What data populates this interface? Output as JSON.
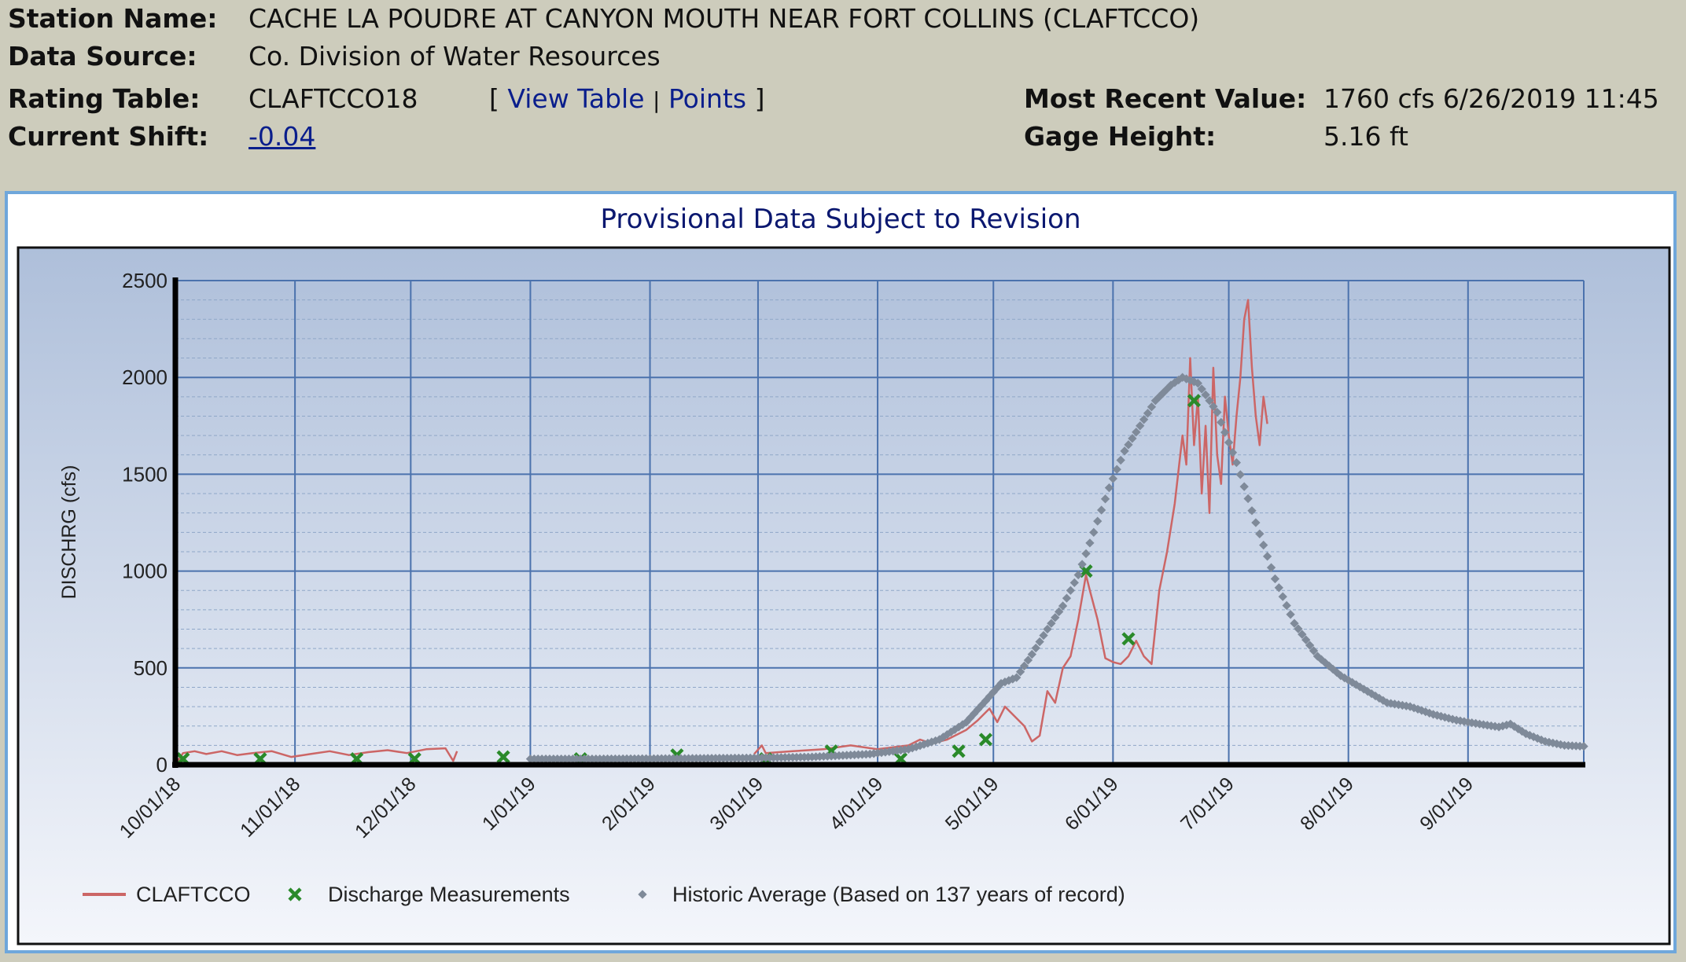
{
  "station": {
    "name_label": "Station Name:",
    "name": "CACHE LA POUDRE AT CANYON MOUTH NEAR FORT COLLINS (CLAFTCCO)",
    "source_label": "Data Source:",
    "source": "Co. Division of Water Resources",
    "rating_label": "Rating Table:",
    "rating": "CLAFTCCO18",
    "bracket_open": "[",
    "view_table": "View Table",
    "separator": "|",
    "points": "Points",
    "bracket_close": "]",
    "shift_label": "Current Shift:",
    "shift": "-0.04",
    "recent_label": "Most Recent Value:",
    "recent": "1760 cfs 6/26/2019 11:45",
    "gage_label": "Gage Height:",
    "gage": "5.16 ft"
  },
  "chart_data": {
    "type": "line",
    "title": "Provisional Data Subject to Revision",
    "ylabel": "DISCHRG (cfs)",
    "xlabel": "",
    "ylim": [
      0,
      2500
    ],
    "yticks": [
      "0",
      "500",
      "1000",
      "1500",
      "2000",
      "2500"
    ],
    "x_start": "10/01/18",
    "x_end": "9/30/19",
    "xticks": [
      {
        "label": "10/01/18",
        "day": 0
      },
      {
        "label": "11/01/18",
        "day": 31
      },
      {
        "label": "12/01/18",
        "day": 61
      },
      {
        "label": "1/01/19",
        "day": 92
      },
      {
        "label": "2/01/19",
        "day": 123
      },
      {
        "label": "3/01/19",
        "day": 151
      },
      {
        "label": "4/01/19",
        "day": 182
      },
      {
        "label": "5/01/19",
        "day": 212
      },
      {
        "label": "6/01/19",
        "day": 243
      },
      {
        "label": "7/01/19",
        "day": 273
      },
      {
        "label": "8/01/19",
        "day": 304
      },
      {
        "label": "9/01/19",
        "day": 335
      }
    ],
    "grid": true,
    "legend_position": "bottom",
    "legend": [
      {
        "name": "CLAFTCCO",
        "marker": "line",
        "color": "#cc6666"
      },
      {
        "name": "Discharge Measurements",
        "marker": "x",
        "color": "#2a8a2a"
      },
      {
        "name": "Historic Average (Based on 137 years of record)",
        "marker": "dot",
        "color": "#7f8a99"
      }
    ],
    "series": [
      {
        "name": "CLAFTCCO",
        "color": "#cc6666",
        "points": [
          [
            0,
            0
          ],
          [
            2,
            60
          ],
          [
            5,
            70
          ],
          [
            8,
            55
          ],
          [
            12,
            70
          ],
          [
            16,
            50
          ],
          [
            20,
            60
          ],
          [
            25,
            70
          ],
          [
            30,
            40
          ],
          [
            35,
            55
          ],
          [
            40,
            70
          ],
          [
            45,
            50
          ],
          [
            50,
            65
          ],
          [
            55,
            75
          ],
          [
            60,
            60
          ],
          [
            65,
            80
          ],
          [
            70,
            85
          ],
          [
            72,
            20
          ],
          [
            73,
            70
          ],
          [
            95,
            40
          ],
          [
            110,
            45
          ],
          [
            130,
            50
          ],
          [
            150,
            55
          ],
          [
            152,
            100
          ],
          [
            153,
            60
          ],
          [
            160,
            70
          ],
          [
            168,
            80
          ],
          [
            175,
            100
          ],
          [
            182,
            80
          ],
          [
            190,
            100
          ],
          [
            193,
            130
          ],
          [
            196,
            110
          ],
          [
            200,
            130
          ],
          [
            205,
            180
          ],
          [
            208,
            230
          ],
          [
            211,
            290
          ],
          [
            213,
            220
          ],
          [
            215,
            300
          ],
          [
            218,
            240
          ],
          [
            220,
            200
          ],
          [
            222,
            120
          ],
          [
            224,
            150
          ],
          [
            226,
            380
          ],
          [
            228,
            320
          ],
          [
            230,
            500
          ],
          [
            232,
            560
          ],
          [
            234,
            750
          ],
          [
            236,
            980
          ],
          [
            237,
            900
          ],
          [
            239,
            750
          ],
          [
            241,
            550
          ],
          [
            243,
            530
          ],
          [
            245,
            520
          ],
          [
            247,
            560
          ],
          [
            249,
            640
          ],
          [
            251,
            560
          ],
          [
            253,
            520
          ],
          [
            255,
            900
          ],
          [
            257,
            1100
          ],
          [
            259,
            1350
          ],
          [
            261,
            1700
          ],
          [
            262,
            1550
          ],
          [
            263,
            2100
          ],
          [
            264,
            1650
          ],
          [
            265,
            1900
          ],
          [
            266,
            1400
          ],
          [
            267,
            1750
          ],
          [
            268,
            1300
          ],
          [
            269,
            2050
          ],
          [
            270,
            1600
          ],
          [
            271,
            1450
          ],
          [
            272,
            1900
          ],
          [
            273,
            1700
          ],
          [
            274,
            1550
          ],
          [
            275,
            1800
          ],
          [
            276,
            2000
          ],
          [
            277,
            2300
          ],
          [
            278,
            2400
          ],
          [
            279,
            2050
          ],
          [
            280,
            1800
          ],
          [
            281,
            1650
          ],
          [
            282,
            1900
          ],
          [
            283,
            1760
          ]
        ]
      },
      {
        "name": "Discharge Measurements",
        "color": "#2a8a2a",
        "points": [
          [
            2,
            30
          ],
          [
            22,
            30
          ],
          [
            47,
            30
          ],
          [
            62,
            30
          ],
          [
            85,
            40
          ],
          [
            105,
            30
          ],
          [
            130,
            50
          ],
          [
            153,
            30
          ],
          [
            170,
            70
          ],
          [
            188,
            30
          ],
          [
            203,
            70
          ],
          [
            210,
            130
          ],
          [
            236,
            1000
          ],
          [
            247,
            650
          ],
          [
            264,
            1880
          ]
        ]
      },
      {
        "name": "Historic Average (Based on 137 years of record)",
        "color": "#7f8a99",
        "points": [
          [
            92,
            30
          ],
          [
            110,
            30
          ],
          [
            130,
            32
          ],
          [
            150,
            35
          ],
          [
            165,
            40
          ],
          [
            180,
            55
          ],
          [
            190,
            80
          ],
          [
            198,
            130
          ],
          [
            205,
            220
          ],
          [
            210,
            330
          ],
          [
            214,
            420
          ],
          [
            218,
            450
          ],
          [
            222,
            570
          ],
          [
            226,
            700
          ],
          [
            230,
            820
          ],
          [
            234,
            980
          ],
          [
            238,
            1200
          ],
          [
            242,
            1430
          ],
          [
            246,
            1620
          ],
          [
            250,
            1750
          ],
          [
            254,
            1880
          ],
          [
            258,
            1960
          ],
          [
            261,
            2000
          ],
          [
            265,
            1970
          ],
          [
            270,
            1820
          ],
          [
            275,
            1560
          ],
          [
            280,
            1250
          ],
          [
            285,
            960
          ],
          [
            290,
            730
          ],
          [
            296,
            560
          ],
          [
            302,
            460
          ],
          [
            308,
            390
          ],
          [
            314,
            320
          ],
          [
            320,
            300
          ],
          [
            326,
            260
          ],
          [
            332,
            230
          ],
          [
            338,
            210
          ],
          [
            343,
            195
          ],
          [
            346,
            210
          ],
          [
            350,
            160
          ],
          [
            355,
            120
          ],
          [
            360,
            100
          ],
          [
            365,
            95
          ]
        ]
      }
    ]
  }
}
